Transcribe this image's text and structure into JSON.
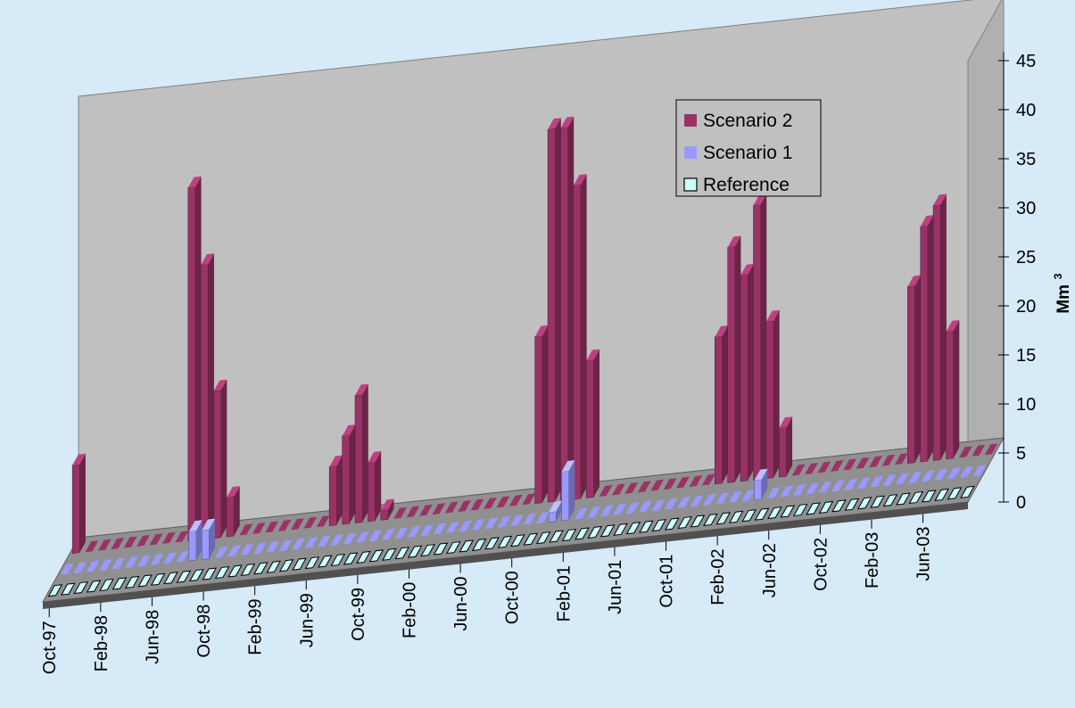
{
  "chart_data": {
    "type": "bar",
    "style": "3d-column",
    "title": "",
    "xlabel": "",
    "ylabel": "Mm",
    "ylabel_superscript": "3",
    "ylim": [
      0,
      45
    ],
    "yticks": [
      0,
      5,
      10,
      15,
      20,
      25,
      30,
      35,
      40,
      45
    ],
    "x_tick_labels": [
      "Oct-97",
      "Feb-98",
      "Jun-98",
      "Oct-98",
      "Feb-99",
      "Jun-99",
      "Oct-99",
      "Feb-00",
      "Jun-00",
      "Oct-00",
      "Feb-01",
      "Jun-01",
      "Oct-01",
      "Feb-02",
      "Jun-02",
      "Oct-02",
      "Feb-03",
      "Jun-03"
    ],
    "month_count": 72,
    "legend_position": "top-right",
    "background_colors": {
      "page": "#d6eaf8",
      "walls": "#c0c0c0",
      "floor": "#909090"
    },
    "series": [
      {
        "name": "Scenario 2",
        "color": "#993366",
        "values": [
          9,
          0,
          0,
          0,
          0,
          0,
          0,
          0,
          0,
          36,
          28,
          15,
          4,
          0,
          0,
          0,
          0,
          0,
          0,
          0,
          6,
          9,
          13,
          6,
          1,
          0,
          0,
          0,
          0,
          0,
          0,
          0,
          0,
          0,
          0,
          0,
          17,
          38,
          38,
          32,
          14,
          0,
          0,
          0,
          0,
          0,
          0,
          0,
          0,
          0,
          15,
          24,
          21,
          28,
          16,
          5,
          0,
          0,
          0,
          0,
          0,
          0,
          0,
          0,
          0,
          18,
          24,
          26,
          13,
          0,
          0,
          0
        ]
      },
      {
        "name": "Scenario 1",
        "color": "#9999ff",
        "values": [
          0,
          0,
          0,
          0,
          0,
          0,
          0,
          0,
          0,
          0,
          3,
          3,
          0,
          0,
          0,
          0,
          0,
          0,
          0,
          0,
          0,
          0,
          0,
          0,
          0,
          0,
          0,
          0,
          0,
          0,
          0,
          0,
          0,
          0,
          0,
          0,
          0,
          0,
          1,
          5,
          0,
          0,
          0,
          0,
          0,
          0,
          0,
          0,
          0,
          0,
          0,
          0,
          0,
          0,
          2,
          0,
          0,
          0,
          0,
          0,
          0,
          0,
          0,
          0,
          0,
          0,
          0,
          0,
          0,
          0,
          0,
          0
        ]
      },
      {
        "name": "Reference",
        "color": "#ccffff",
        "values": [
          0,
          0,
          0,
          0,
          0,
          0,
          0,
          0,
          0,
          0,
          0,
          0,
          0,
          0,
          0,
          0,
          0,
          0,
          0,
          0,
          0,
          0,
          0,
          0,
          0,
          0,
          0,
          0,
          0,
          0,
          0,
          0,
          0,
          0,
          0,
          0,
          0,
          0,
          0,
          0,
          0,
          0,
          0,
          0,
          0,
          0,
          0,
          0,
          0,
          0,
          0,
          0,
          0,
          0,
          0,
          0,
          0,
          0,
          0,
          0,
          0,
          0,
          0,
          0,
          0,
          0,
          0,
          0,
          0,
          0,
          0,
          0
        ]
      }
    ]
  }
}
